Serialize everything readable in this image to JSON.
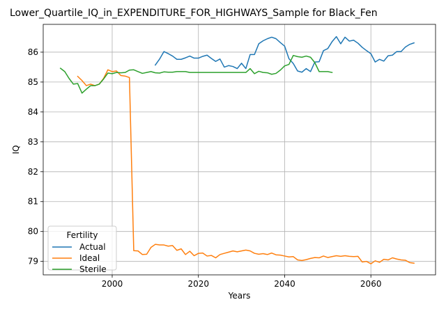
{
  "chart_data": {
    "type": "line",
    "title": "Lower_Quartile_IQ_in_EXPENDITURE_FOR_HIGHWAYS_Sample for Black_Fen",
    "xlabel": "Years",
    "ylabel": "IQ",
    "xlim": [
      1984,
      2075
    ],
    "ylim": [
      78.55,
      86.93
    ],
    "xticks": [
      2000,
      2020,
      2040,
      2060
    ],
    "yticks": [
      79,
      80,
      81,
      82,
      83,
      84,
      85,
      86
    ],
    "grid": true,
    "legend": {
      "title": "Fertility",
      "placement": "lower-left"
    },
    "colors": {
      "Actual": "#1f77b4",
      "Ideal": "#ff7f0e",
      "Sterile": "#2ca02c"
    },
    "series": [
      {
        "name": "Actual",
        "x": [
          2010,
          2011,
          2012,
          2013,
          2014,
          2015,
          2016,
          2017,
          2018,
          2019,
          2020,
          2021,
          2022,
          2023,
          2024,
          2025,
          2026,
          2027,
          2028,
          2029,
          2030,
          2031,
          2032,
          2033,
          2034,
          2035,
          2036,
          2037,
          2038,
          2039,
          2040,
          2041,
          2042,
          2043,
          2044,
          2045,
          2046,
          2047,
          2048,
          2049,
          2050,
          2051,
          2052,
          2053,
          2054,
          2055,
          2056,
          2057,
          2058,
          2059,
          2060,
          2061,
          2062,
          2063,
          2064,
          2065,
          2066,
          2067,
          2068,
          2069,
          2070
        ],
        "y": [
          85.57,
          85.77,
          86.02,
          85.95,
          85.87,
          85.76,
          85.76,
          85.81,
          85.87,
          85.8,
          85.8,
          85.86,
          85.9,
          85.79,
          85.69,
          85.77,
          85.5,
          85.55,
          85.52,
          85.45,
          85.63,
          85.45,
          85.92,
          85.92,
          86.28,
          86.38,
          86.45,
          86.5,
          86.45,
          86.32,
          86.2,
          85.78,
          85.62,
          85.37,
          85.33,
          85.45,
          85.35,
          85.67,
          85.68,
          86.05,
          86.12,
          86.35,
          86.52,
          86.28,
          86.5,
          86.37,
          86.4,
          86.3,
          86.16,
          86.05,
          85.95,
          85.67,
          85.76,
          85.7,
          85.88,
          85.9,
          86.02,
          86.02,
          86.17,
          86.26,
          86.31
        ]
      },
      {
        "name": "Ideal",
        "x": [
          1992,
          1993,
          1994,
          1995,
          1996,
          1997,
          1998,
          1999,
          2000,
          2001,
          2002,
          2003,
          2004,
          2005,
          2006,
          2007,
          2008,
          2009,
          2010,
          2011,
          2012,
          2013,
          2014,
          2015,
          2016,
          2017,
          2018,
          2019,
          2020,
          2021,
          2022,
          2023,
          2024,
          2025,
          2026,
          2027,
          2028,
          2029,
          2030,
          2031,
          2032,
          2033,
          2034,
          2035,
          2036,
          2037,
          2038,
          2039,
          2040,
          2041,
          2042,
          2043,
          2044,
          2045,
          2046,
          2047,
          2048,
          2049,
          2050,
          2051,
          2052,
          2053,
          2054,
          2055,
          2056,
          2057,
          2058,
          2059,
          2060,
          2061,
          2062,
          2063,
          2064,
          2065,
          2066,
          2067,
          2068,
          2069,
          2070
        ],
        "y": [
          85.19,
          85.05,
          84.88,
          84.93,
          84.88,
          84.93,
          85.12,
          85.41,
          85.35,
          85.37,
          85.22,
          85.2,
          85.15,
          79.36,
          79.35,
          79.23,
          79.24,
          79.47,
          79.57,
          79.55,
          79.55,
          79.51,
          79.53,
          79.37,
          79.42,
          79.23,
          79.34,
          79.19,
          79.27,
          79.28,
          79.18,
          79.2,
          79.12,
          79.23,
          79.27,
          79.31,
          79.35,
          79.32,
          79.35,
          79.38,
          79.35,
          79.27,
          79.24,
          79.26,
          79.23,
          79.28,
          79.22,
          79.21,
          79.18,
          79.15,
          79.16,
          79.05,
          79.03,
          79.06,
          79.1,
          79.13,
          79.12,
          79.18,
          79.13,
          79.16,
          79.19,
          79.17,
          79.19,
          79.17,
          79.16,
          79.17,
          78.98,
          79.0,
          78.92,
          79.02,
          78.97,
          79.07,
          79.05,
          79.12,
          79.08,
          79.05,
          79.04,
          78.96,
          78.94
        ]
      },
      {
        "name": "Sterile",
        "x": [
          1988,
          1989,
          1990,
          1991,
          1992,
          1993,
          1994,
          1995,
          1996,
          1997,
          1998,
          1999,
          2000,
          2001,
          2002,
          2003,
          2004,
          2005,
          2006,
          2007,
          2008,
          2009,
          2010,
          2011,
          2012,
          2013,
          2014,
          2015,
          2016,
          2017,
          2018,
          2019,
          2020,
          2021,
          2022,
          2023,
          2024,
          2025,
          2026,
          2027,
          2028,
          2029,
          2030,
          2031,
          2032,
          2033,
          2034,
          2035,
          2036,
          2037,
          2038,
          2039,
          2040,
          2041,
          2042,
          2043,
          2044,
          2045,
          2046,
          2047,
          2048,
          2049,
          2050,
          2051
        ],
        "y": [
          85.46,
          85.35,
          85.12,
          84.93,
          84.95,
          84.63,
          84.76,
          84.88,
          84.88,
          84.93,
          85.1,
          85.3,
          85.28,
          85.32,
          85.31,
          85.32,
          85.4,
          85.41,
          85.35,
          85.29,
          85.32,
          85.35,
          85.31,
          85.3,
          85.34,
          85.33,
          85.33,
          85.35,
          85.35,
          85.35,
          85.32,
          85.32,
          85.32,
          85.32,
          85.32,
          85.32,
          85.32,
          85.32,
          85.32,
          85.32,
          85.32,
          85.32,
          85.32,
          85.32,
          85.45,
          85.28,
          85.36,
          85.32,
          85.31,
          85.26,
          85.29,
          85.4,
          85.54,
          85.59,
          85.89,
          85.85,
          85.83,
          85.87,
          85.83,
          85.65,
          85.35,
          85.35,
          85.35,
          85.32
        ]
      }
    ]
  }
}
